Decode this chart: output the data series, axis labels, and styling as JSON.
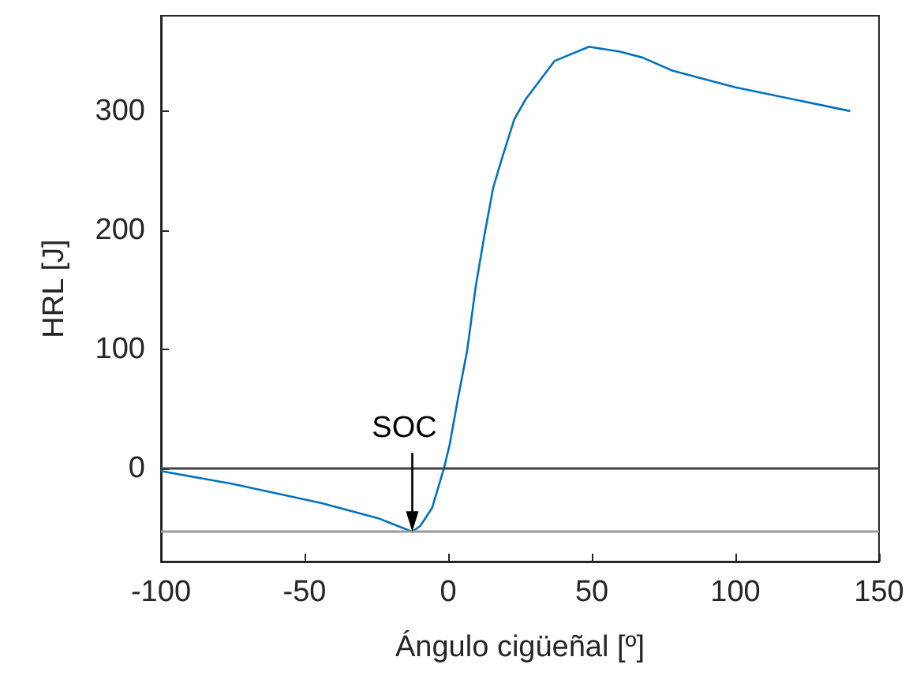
{
  "chart_data": {
    "type": "line",
    "xlabel": "Ángulo cigüeñal [º]",
    "ylabel": "HRL [J]",
    "x": [
      -100,
      -74.8,
      -44,
      -24,
      -12.5,
      -9.7,
      -5.6,
      -1.5,
      0.5,
      3.5,
      6.6,
      9.6,
      12.7,
      15.7,
      18.8,
      23,
      27,
      37,
      49,
      59.5,
      67.6,
      78,
      100,
      140
    ],
    "series": [
      {
        "color": "#0072bd",
        "values": [
          -2,
          -13,
          -29,
          -42,
          -53,
          -48,
          -33,
          0,
          20,
          60,
          99,
          153,
          197,
          236,
          261,
          293,
          310,
          342,
          354,
          350,
          345,
          334,
          320,
          300
        ]
      }
    ],
    "xlim": [
      -100,
      150
    ],
    "xticks": [
      -100,
      -50,
      0,
      50,
      100,
      150
    ],
    "ylim": [
      -78,
      380
    ],
    "yticks": [
      0,
      100,
      200,
      300
    ],
    "ref_lines": [
      {
        "axis": "y",
        "value": 0,
        "color": "#404040"
      },
      {
        "axis": "y",
        "value": -53,
        "color": "#999999"
      }
    ],
    "annotations": [
      {
        "text": "SOC",
        "x": -12.5,
        "y": -53
      }
    ],
    "grid": false,
    "marker": "none",
    "line_style": "solid"
  }
}
